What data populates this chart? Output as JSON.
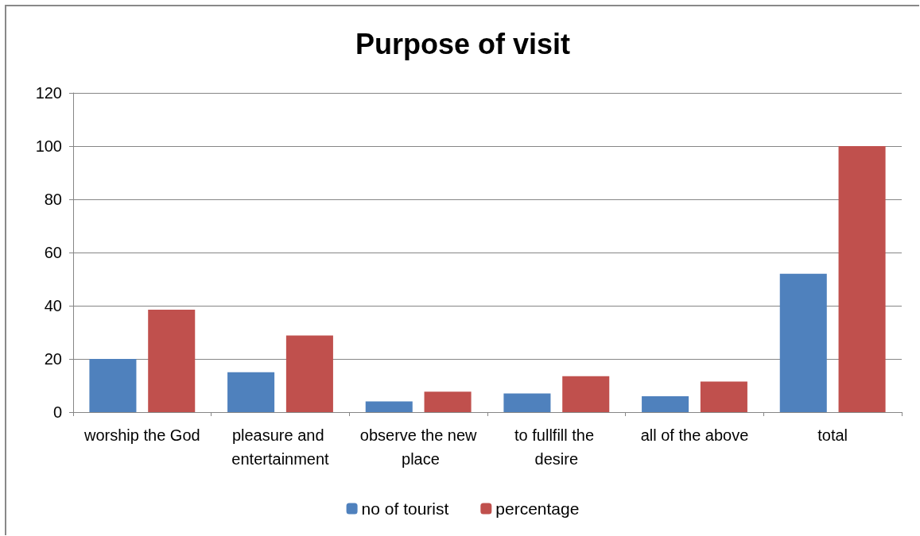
{
  "chart_data": {
    "type": "bar",
    "title": "Purpose of visit",
    "categories": [
      "worship the God",
      "pleasure and entertainment",
      "observe the new place",
      "to fullfill the desire",
      "all of the above",
      "total"
    ],
    "series": [
      {
        "name": "no of tourist",
        "color": "#4f81bd",
        "values": [
          20,
          15,
          4,
          7,
          6,
          52
        ]
      },
      {
        "name": "percentage",
        "color": "#c0504d",
        "values": [
          38.5,
          28.8,
          7.7,
          13.5,
          11.5,
          100
        ]
      }
    ],
    "ylim": [
      0,
      120
    ],
    "yticks": [
      0,
      20,
      40,
      60,
      80,
      100,
      120
    ],
    "grid": "y",
    "legend": "bottom"
  }
}
